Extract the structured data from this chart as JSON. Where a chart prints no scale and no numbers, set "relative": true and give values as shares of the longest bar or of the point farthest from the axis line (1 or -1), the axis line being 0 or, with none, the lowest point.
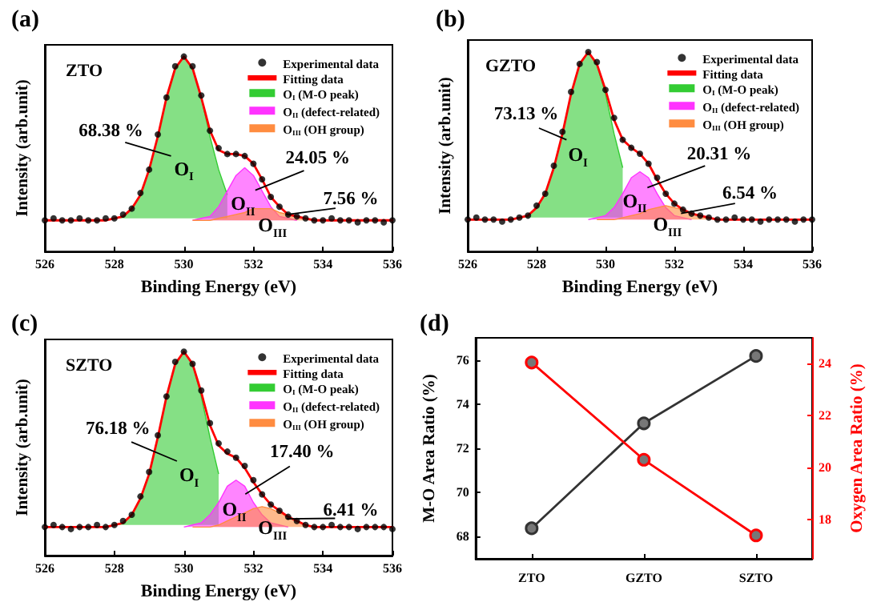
{
  "chart_data": [
    {
      "type": "line",
      "title": "(a)",
      "subtitle": "ZTO",
      "xlabel": "Binding Energy (eV)",
      "ylabel": "Intensity (arb.unit)",
      "relative": true,
      "legend": "top right",
      "grid": false,
      "xlim": [
        526,
        536
      ],
      "xticks": [
        526,
        528,
        530,
        532,
        534,
        536
      ],
      "x": [
        526,
        526.25,
        526.5,
        526.75,
        527,
        527.25,
        527.5,
        527.75,
        528,
        528.25,
        528.5,
        528.75,
        529,
        529.25,
        529.5,
        529.75,
        530,
        530.25,
        530.5,
        530.75,
        531,
        531.25,
        531.5,
        531.75,
        532,
        532.25,
        532.5,
        532.75,
        533,
        533.25,
        533.5,
        533.75,
        534,
        534.25,
        534.5,
        534.75,
        535,
        535.25,
        535.5,
        535.75,
        536
      ],
      "series": [
        {
          "name": "Experimental data",
          "type": "scatter",
          "marker": "circle",
          "color": "#000000",
          "values": [
            0.16,
            0.17,
            0.16,
            0.16,
            0.17,
            0.16,
            0.16,
            0.17,
            0.17,
            0.19,
            0.22,
            0.3,
            0.42,
            0.6,
            0.79,
            0.95,
            1.0,
            0.95,
            0.8,
            0.62,
            0.53,
            0.5,
            0.5,
            0.49,
            0.45,
            0.37,
            0.28,
            0.23,
            0.19,
            0.18,
            0.17,
            0.16,
            0.16,
            0.17,
            0.16,
            0.16,
            0.15,
            0.16,
            0.16,
            0.15,
            0.16
          ]
        },
        {
          "name": "Fitting data",
          "type": "line",
          "color": "#ff0000",
          "values": [
            0.16,
            0.16,
            0.16,
            0.16,
            0.16,
            0.16,
            0.16,
            0.16,
            0.17,
            0.18,
            0.22,
            0.29,
            0.42,
            0.59,
            0.79,
            0.94,
            1.0,
            0.94,
            0.79,
            0.62,
            0.52,
            0.5,
            0.5,
            0.49,
            0.45,
            0.37,
            0.28,
            0.23,
            0.19,
            0.18,
            0.17,
            0.16,
            0.16,
            0.16,
            0.16,
            0.16,
            0.16,
            0.16,
            0.16,
            0.16,
            0.16
          ]
        },
        {
          "name": "O$_{I}$ (M-O peak)",
          "type": "area",
          "color": "#33cc33",
          "x": [
            528,
            528.25,
            528.5,
            528.75,
            529,
            529.25,
            529.5,
            529.75,
            530,
            530.25,
            530.5,
            530.75,
            531,
            531.25
          ],
          "values": [
            0.17,
            0.18,
            0.22,
            0.29,
            0.42,
            0.59,
            0.79,
            0.94,
            1.0,
            0.94,
            0.79,
            0.59,
            0.42,
            0.29
          ]
        },
        {
          "name": "O$_{II}$ (defect-related)",
          "type": "area",
          "color": "#ff33ff",
          "x": [
            530.25,
            530.5,
            530.75,
            531,
            531.25,
            531.5,
            531.75,
            532,
            532.25,
            532.5,
            532.75,
            533,
            533.25
          ],
          "values": [
            0.16,
            0.17,
            0.18,
            0.23,
            0.31,
            0.39,
            0.43,
            0.39,
            0.31,
            0.23,
            0.18,
            0.17,
            0.16
          ]
        },
        {
          "name": "O$_{III}$ (OH group)",
          "type": "area",
          "color": "#ff8c40",
          "x": [
            530.25,
            530.5,
            530.75,
            531,
            531.25,
            531.5,
            531.75,
            532,
            532.25,
            532.5,
            532.75,
            533,
            533.25,
            533.5,
            533.75,
            534,
            534.25
          ],
          "values": [
            0.16,
            0.16,
            0.16,
            0.17,
            0.18,
            0.19,
            0.2,
            0.22,
            0.22,
            0.22,
            0.2,
            0.19,
            0.18,
            0.17,
            0.16,
            0.16,
            0.16
          ]
        }
      ],
      "annotations": [
        "68.38 %",
        "O$_{I}$",
        "24.05 %",
        "O$_{II}$",
        "7.56 %",
        "O$_{III}$"
      ]
    },
    {
      "type": "line",
      "title": "(b)",
      "subtitle": "GZTO",
      "xlabel": "Binding Energy (eV)",
      "ylabel": "Intensity (arb.unit)",
      "relative": true,
      "legend": "top right",
      "grid": false,
      "xlim": [
        526,
        536
      ],
      "xticks": [
        526,
        528,
        530,
        532,
        534,
        536
      ],
      "x": [
        526,
        526.25,
        526.5,
        526.75,
        527,
        527.25,
        527.5,
        527.75,
        528,
        528.25,
        528.5,
        528.75,
        529,
        529.25,
        529.5,
        529.75,
        530,
        530.25,
        530.5,
        530.75,
        531,
        531.25,
        531.5,
        531.75,
        532,
        532.25,
        532.5,
        532.75,
        533,
        533.25,
        533.5,
        533.75,
        534,
        534.25,
        534.5,
        534.75,
        535,
        535.25,
        535.5,
        535.75,
        536
      ],
      "series": [
        {
          "name": "Experimental data",
          "type": "scatter",
          "marker": "circle",
          "color": "#000000",
          "values": [
            0.16,
            0.17,
            0.16,
            0.16,
            0.15,
            0.16,
            0.17,
            0.18,
            0.23,
            0.29,
            0.43,
            0.6,
            0.8,
            0.94,
            1.0,
            0.95,
            0.81,
            0.67,
            0.56,
            0.52,
            0.49,
            0.44,
            0.37,
            0.29,
            0.24,
            0.21,
            0.19,
            0.18,
            0.17,
            0.16,
            0.16,
            0.17,
            0.16,
            0.16,
            0.15,
            0.16,
            0.16,
            0.16,
            0.15,
            0.16,
            0.16
          ]
        },
        {
          "name": "Fitting data",
          "type": "line",
          "color": "#ff0000",
          "values": [
            0.16,
            0.16,
            0.16,
            0.16,
            0.16,
            0.16,
            0.17,
            0.18,
            0.22,
            0.29,
            0.42,
            0.59,
            0.79,
            0.94,
            1.0,
            0.94,
            0.81,
            0.66,
            0.56,
            0.52,
            0.49,
            0.44,
            0.36,
            0.29,
            0.24,
            0.21,
            0.19,
            0.18,
            0.17,
            0.16,
            0.16,
            0.16,
            0.16,
            0.16,
            0.16,
            0.16,
            0.16,
            0.16,
            0.16,
            0.16,
            0.16
          ]
        },
        {
          "name": "O$_{I}$ (M-O peak)",
          "type": "area",
          "color": "#33cc33",
          "x": [
            527.5,
            527.75,
            528,
            528.25,
            528.5,
            528.75,
            529,
            529.25,
            529.5,
            529.75,
            530,
            530.25,
            530.5
          ],
          "values": [
            0.17,
            0.18,
            0.22,
            0.29,
            0.42,
            0.59,
            0.79,
            0.94,
            1.0,
            0.94,
            0.79,
            0.59,
            0.42
          ]
        },
        {
          "name": "O$_{II}$ (defect-related)",
          "type": "area",
          "color": "#ff33ff",
          "x": [
            529.5,
            529.75,
            530,
            530.25,
            530.5,
            530.75,
            531,
            531.25,
            531.5,
            531.75,
            532,
            532.25,
            532.5
          ],
          "values": [
            0.16,
            0.17,
            0.18,
            0.22,
            0.29,
            0.37,
            0.4,
            0.37,
            0.29,
            0.22,
            0.18,
            0.17,
            0.16
          ]
        },
        {
          "name": "O$_{III}$ (OH group)",
          "type": "area",
          "color": "#ff8c40",
          "x": [
            529.75,
            530,
            530.25,
            530.5,
            530.75,
            531,
            531.25,
            531.5,
            531.75,
            532,
            532.25,
            532.5,
            532.75,
            533,
            533.25,
            533.5,
            533.75
          ],
          "values": [
            0.16,
            0.16,
            0.16,
            0.17,
            0.18,
            0.19,
            0.21,
            0.22,
            0.23,
            0.22,
            0.21,
            0.19,
            0.18,
            0.17,
            0.16,
            0.16,
            0.16
          ]
        }
      ],
      "annotations": [
        "73.13 %",
        "O$_{I}$",
        "20.31 %",
        "O$_{II}$",
        "6.54 %",
        "O$_{III}$"
      ]
    },
    {
      "type": "line",
      "title": "(c)",
      "subtitle": "SZTO",
      "xlabel": "Binding Energy (eV)",
      "ylabel": "Intensity (arb.unit)",
      "relative": true,
      "legend": "top right",
      "grid": false,
      "xlim": [
        526,
        536
      ],
      "xticks": [
        526,
        528,
        530,
        532,
        534,
        536
      ],
      "x": [
        526,
        526.25,
        526.5,
        526.75,
        527,
        527.25,
        527.5,
        527.75,
        528,
        528.25,
        528.5,
        528.75,
        529,
        529.25,
        529.5,
        529.75,
        530,
        530.25,
        530.5,
        530.75,
        531,
        531.25,
        531.5,
        531.75,
        532,
        532.25,
        532.5,
        532.75,
        533,
        533.25,
        533.5,
        533.75,
        534,
        534.25,
        534.5,
        534.75,
        535,
        535.25,
        535.5,
        535.75,
        536
      ],
      "series": [
        {
          "name": "Experimental data",
          "type": "scatter",
          "marker": "circle",
          "color": "#000000",
          "values": [
            0.14,
            0.15,
            0.14,
            0.13,
            0.14,
            0.14,
            0.15,
            0.14,
            0.15,
            0.17,
            0.2,
            0.29,
            0.41,
            0.59,
            0.78,
            0.95,
            1.0,
            0.94,
            0.81,
            0.65,
            0.55,
            0.51,
            0.48,
            0.44,
            0.37,
            0.3,
            0.25,
            0.22,
            0.19,
            0.17,
            0.15,
            0.14,
            0.14,
            0.15,
            0.14,
            0.14,
            0.13,
            0.14,
            0.14,
            0.14,
            0.13
          ]
        },
        {
          "name": "Fitting data",
          "type": "line",
          "color": "#ff0000",
          "values": [
            0.14,
            0.14,
            0.14,
            0.14,
            0.14,
            0.14,
            0.14,
            0.14,
            0.15,
            0.16,
            0.2,
            0.28,
            0.4,
            0.58,
            0.78,
            0.94,
            1.0,
            0.94,
            0.8,
            0.64,
            0.54,
            0.5,
            0.48,
            0.43,
            0.36,
            0.3,
            0.25,
            0.22,
            0.19,
            0.17,
            0.15,
            0.14,
            0.14,
            0.14,
            0.14,
            0.14,
            0.14,
            0.14,
            0.14,
            0.14,
            0.14
          ]
        },
        {
          "name": "O$_{I}$ (M-O peak)",
          "type": "area",
          "color": "#33cc33",
          "x": [
            528,
            528.25,
            528.5,
            528.75,
            529,
            529.25,
            529.5,
            529.75,
            530,
            530.25,
            530.5,
            530.75,
            531
          ],
          "values": [
            0.15,
            0.16,
            0.2,
            0.28,
            0.4,
            0.58,
            0.78,
            0.94,
            1.0,
            0.94,
            0.78,
            0.58,
            0.4
          ]
        },
        {
          "name": "O$_{II}$ (defect-related)",
          "type": "area",
          "color": "#ff33ff",
          "x": [
            530,
            530.25,
            530.5,
            530.75,
            531,
            531.25,
            531.5,
            531.75,
            532,
            532.25,
            532.5,
            532.75,
            533
          ],
          "values": [
            0.14,
            0.15,
            0.16,
            0.2,
            0.26,
            0.34,
            0.37,
            0.34,
            0.26,
            0.2,
            0.16,
            0.15,
            0.14
          ]
        },
        {
          "name": "O$_{III}$ (OH group)",
          "type": "area",
          "color": "#ff8c40",
          "x": [
            530.25,
            530.5,
            530.75,
            531,
            531.25,
            531.5,
            531.75,
            532,
            532.25,
            532.5,
            532.75,
            533,
            533.25,
            533.5,
            533.75,
            534,
            534.25
          ],
          "values": [
            0.14,
            0.14,
            0.14,
            0.15,
            0.17,
            0.19,
            0.21,
            0.23,
            0.24,
            0.23,
            0.21,
            0.19,
            0.17,
            0.15,
            0.14,
            0.14,
            0.14
          ]
        }
      ],
      "annotations": [
        "76.18 %",
        "O$_{I}$",
        "17.40 %",
        "O$_{II}$",
        "6.41 %",
        "O$_{III}$"
      ]
    },
    {
      "type": "line",
      "title": "(d)",
      "ylabel": "M-O Area Ratio (%)",
      "y2label": "Oxygen Area Ratio (%)",
      "marker": "circle",
      "line_style": "solid",
      "grid": false,
      "categories": [
        "ZTO",
        "GZTO",
        "SZTO"
      ],
      "ylim": [
        67,
        77
      ],
      "yticks": [
        68,
        70,
        72,
        74,
        76
      ],
      "y2lim": [
        16.5,
        25
      ],
      "y2ticks": [
        18,
        20,
        22,
        24
      ],
      "series": [
        {
          "color": "#333333",
          "values": [
            68.38,
            73.13,
            76.18
          ]
        },
        {
          "color": "#ff0000",
          "axis": "y2",
          "values": [
            24.05,
            20.31,
            17.4
          ]
        }
      ]
    }
  ]
}
